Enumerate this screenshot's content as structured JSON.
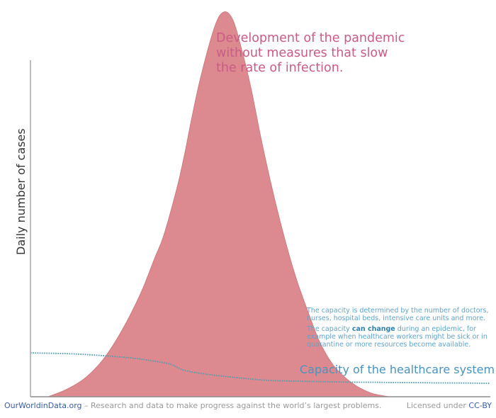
{
  "chart_data": {
    "type": "area",
    "title": "",
    "xlabel": "",
    "ylabel": "Daily number of cases",
    "xlim": [
      0,
      100
    ],
    "ylim": [
      0,
      100
    ],
    "grid": false,
    "series": [
      {
        "name": "Development of the pandemic without measures that slow the rate of infection.",
        "kind": "area",
        "color": "#dc8a8f",
        "x": [
          3.8,
          8,
          12,
          16,
          20,
          24,
          27,
          29,
          32,
          33.5,
          35,
          37,
          40,
          42,
          44,
          46,
          48,
          50,
          52,
          54,
          56,
          58,
          61,
          63,
          66,
          70,
          74,
          78
        ],
        "y": [
          0,
          2,
          5,
          10,
          17.5,
          27,
          36,
          42,
          55,
          63,
          72,
          83,
          96,
          100,
          98,
          90,
          80,
          68,
          57,
          47,
          38,
          30,
          20,
          14,
          8,
          3.5,
          1,
          0
        ]
      },
      {
        "name": "Capacity of the healthcare system",
        "kind": "dotted-line",
        "color": "#3a9fb8",
        "x": [
          0,
          10,
          20,
          25,
          30,
          32,
          34,
          40,
          50,
          56,
          60,
          70,
          80,
          90,
          100
        ],
        "y": [
          11.4,
          11.1,
          10.3,
          9.6,
          8.6,
          7.6,
          6.7,
          5.6,
          4.4,
          4.1,
          4.0,
          3.8,
          3.7,
          3.6,
          3.5
        ]
      }
    ],
    "annotations": {
      "pandemic_lines": [
        "Development of the pandemic",
        "without measures that slow",
        "the rate of infection."
      ],
      "capacity_note_1": "The capacity is determined by the number of doctors, nurses, hospital beds, intensive care units and more.",
      "capacity_note_2_pre": "The capacity ",
      "capacity_note_2_bold": "can change",
      "capacity_note_2_post": " during an epidemic, for example when healthcare workers might be sick or in quarantine or more resources become available.",
      "capacity_title": "Capacity of the healthcare system"
    }
  },
  "footer": {
    "brand": "OurWorldinData.org",
    "tagline": " – Research and data to make progress against the world’s largest problems.",
    "license_prefix": "Licensed under ",
    "license_link": "CC-BY"
  }
}
